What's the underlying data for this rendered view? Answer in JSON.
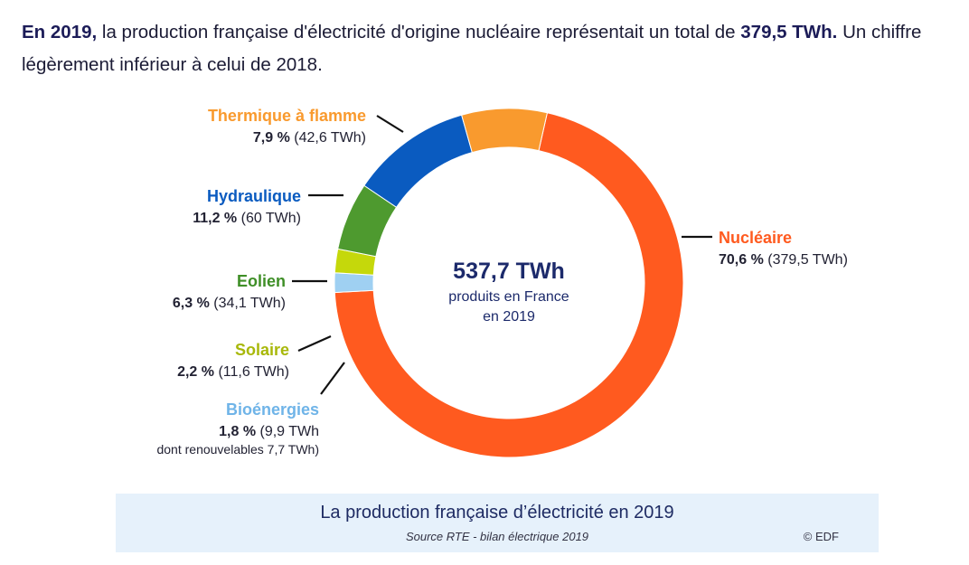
{
  "intro": {
    "year_bold": "En 2019,",
    "text_a": " la production française d'électricité d'origine nucléaire représentait un total de ",
    "value_bold": "379,5 TWh.",
    "text_b": " Un chiffre légèrement inférieur à celui de 2018."
  },
  "chart_data": {
    "type": "pie",
    "donut": true,
    "center": {
      "value": "537,7 TWh",
      "line1": "produits en France",
      "line2": "en 2019"
    },
    "slices": [
      {
        "name": "Nucléaire",
        "percent": 70.6,
        "percent_label": "70,6 %",
        "detail": "(379,5 TWh)",
        "value_twh": 379.5,
        "color": "#ff5a1f"
      },
      {
        "name": "Bioénergies",
        "percent": 1.8,
        "percent_label": "1,8 %",
        "detail": "(9,9 TWh",
        "note": "dont renouvelables 7,7 TWh)",
        "value_twh": 9.9,
        "color": "#9fd0f2"
      },
      {
        "name": "Solaire",
        "percent": 2.2,
        "percent_label": "2,2 %",
        "detail": "(11,6 TWh)",
        "value_twh": 11.6,
        "color": "#c5d80b"
      },
      {
        "name": "Eolien",
        "percent": 6.3,
        "percent_label": "6,3 %",
        "detail": "(34,1 TWh)",
        "value_twh": 34.1,
        "color": "#4e9a2f"
      },
      {
        "name": "Hydraulique",
        "percent": 11.2,
        "percent_label": "11,2 %",
        "detail": "(60 TWh)",
        "value_twh": 60,
        "color": "#0a5bc0"
      },
      {
        "name": "Thermique à flamme",
        "percent": 7.9,
        "percent_label": "7,9 %",
        "detail": "(42,6 TWh)",
        "value_twh": 42.6,
        "color": "#f99a2e"
      }
    ]
  },
  "footer": {
    "title": "La production française d’électricité en 2019",
    "source": "Source RTE - bilan électrique 2019",
    "copyright": "© EDF"
  },
  "colors": {
    "label_nucleaire": "#ff5a1f",
    "label_bio": "#6fb4e8",
    "label_solaire": "#a8b80a",
    "label_eolien": "#3f8f27",
    "label_hydro": "#0a5bc0",
    "label_thermique": "#f99a2e",
    "center_value": "#1c2a6b",
    "center_sub": "#1c2a6b"
  }
}
